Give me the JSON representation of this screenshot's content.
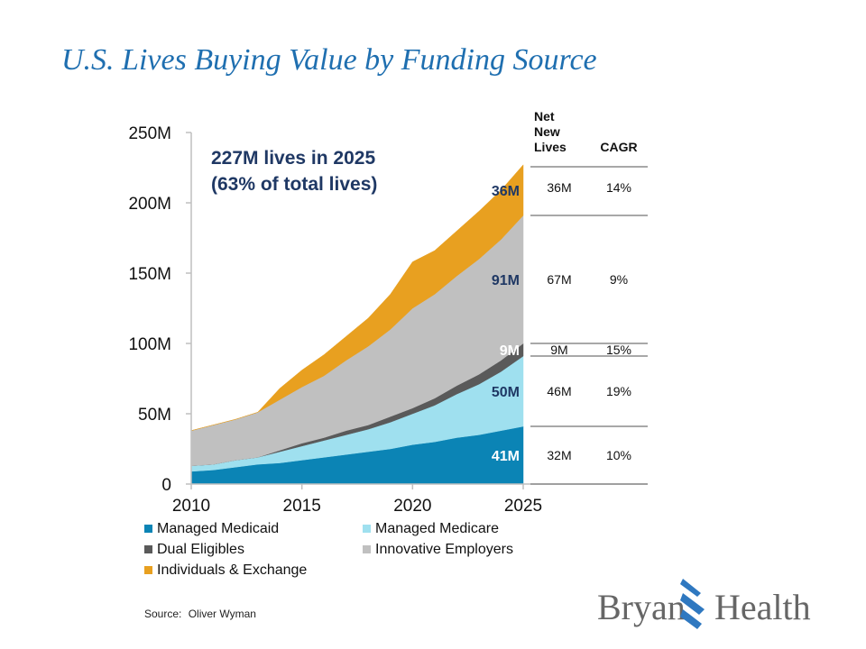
{
  "title": "U.S. Lives Buying Value by Funding Source",
  "callout": {
    "line1": "227M  lives in 2025",
    "line2": "(63% of total lives)"
  },
  "source": {
    "label": "Source:",
    "value": "Oliver Wyman"
  },
  "logo": {
    "word1": "Bryan",
    "word2": "Health"
  },
  "chart_data": {
    "type": "area",
    "stacked": true,
    "x": [
      2010,
      2011,
      2012,
      2013,
      2014,
      2015,
      2016,
      2017,
      2018,
      2019,
      2020,
      2021,
      2022,
      2023,
      2024,
      2025
    ],
    "xticks": [
      "2010",
      "2015",
      "2020",
      "2025"
    ],
    "yticks": [
      "0",
      "50M",
      "100M",
      "150M",
      "200M",
      "250M"
    ],
    "ylim": [
      0,
      250
    ],
    "series": [
      {
        "name": "Managed Medicaid",
        "color": "#0b84b5",
        "values": [
          9,
          10,
          12,
          14,
          15,
          17,
          19,
          21,
          23,
          25,
          28,
          30,
          33,
          35,
          38,
          41
        ]
      },
      {
        "name": "Managed Medicare",
        "color": "#9fe0ef",
        "values": [
          4,
          4,
          5,
          5,
          8,
          10,
          12,
          14,
          16,
          19,
          22,
          26,
          31,
          36,
          42,
          50
        ]
      },
      {
        "name": "Dual Eligibles",
        "color": "#5a5a5a",
        "values": [
          0,
          0,
          0,
          0,
          1,
          2,
          2,
          3,
          3,
          4,
          4,
          5,
          6,
          7,
          8,
          9
        ]
      },
      {
        "name": "Innovative Employers",
        "color": "#c0c0c0",
        "values": [
          25,
          28,
          29,
          32,
          36,
          40,
          44,
          50,
          56,
          62,
          71,
          74,
          78,
          82,
          86,
          91
        ]
      },
      {
        "name": "Individuals & Exchange",
        "color": "#e8a020",
        "values": [
          0,
          0,
          0,
          0,
          8,
          12,
          15,
          17,
          20,
          25,
          33,
          31,
          32,
          34,
          35,
          36
        ]
      }
    ],
    "end_labels": [
      "41M",
      "50M",
      "9M",
      "91M",
      "36M"
    ],
    "table": {
      "headers": [
        "Net\nNew\nLives",
        "CAGR"
      ],
      "rows": [
        {
          "series": "Individuals & Exchange",
          "net_new": "36M",
          "cagr": "14%"
        },
        {
          "series": "Innovative Employers",
          "net_new": "67M",
          "cagr": "9%"
        },
        {
          "series": "Dual Eligibles",
          "net_new": "9M",
          "cagr": "15%"
        },
        {
          "series": "Managed Medicare",
          "net_new": "46M",
          "cagr": "19%"
        },
        {
          "series": "Managed Medicaid",
          "net_new": "32M",
          "cagr": "10%"
        }
      ]
    },
    "legend": {
      "placement": "bottom",
      "entries": [
        "Managed Medicaid",
        "Managed Medicare",
        "Dual Eligibles",
        "Innovative Employers",
        "Individuals & Exchange"
      ]
    }
  }
}
